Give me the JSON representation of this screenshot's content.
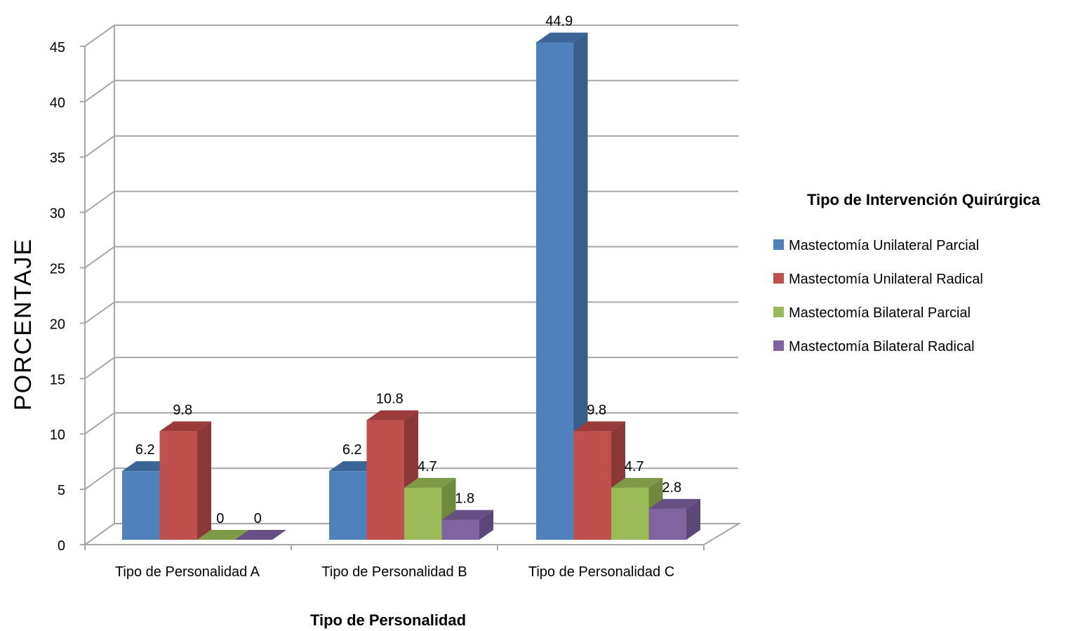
{
  "colors": {
    "grid": "#a6a6a6",
    "wall_edge": "#a6a6a6",
    "text": "#000000"
  },
  "chart_data": {
    "type": "bar",
    "style": "3d-clustered-column",
    "categories": [
      "Tipo de Personalidad A",
      "Tipo de Personalidad B",
      "Tipo de Personalidad C"
    ],
    "series": [
      {
        "name": "Mastectomía Unilateral Parcial",
        "values": [
          6.2,
          6.2,
          44.9
        ],
        "color": "#4f81bd",
        "side": "#385d8a",
        "top": "#3b6497"
      },
      {
        "name": "Mastectomía Unilateral Radical",
        "values": [
          9.8,
          10.8,
          9.8
        ],
        "color": "#c0504d",
        "side": "#8c3836",
        "top": "#9b3c3a"
      },
      {
        "name": "Mastectomía Bilateral Parcial",
        "values": [
          0,
          4.7,
          4.7
        ],
        "color": "#9bbb59",
        "side": "#71893f",
        "top": "#7d9a44"
      },
      {
        "name": "Mastectomía Bilateral Radical",
        "values": [
          0,
          1.8,
          2.8
        ],
        "color": "#8064a2",
        "side": "#5c4876",
        "top": "#664f83"
      }
    ],
    "data_labels": [
      [
        "6.2",
        "9.8",
        "0",
        "0"
      ],
      [
        "6.2",
        "10.8",
        "4.7",
        "1.8"
      ],
      [
        "44.9",
        "9.8",
        "4.7",
        "2.8"
      ]
    ],
    "yticks": [
      "0",
      "5",
      "10",
      "15",
      "20",
      "25",
      "30",
      "35",
      "40",
      "45"
    ],
    "ylim": [
      0,
      45
    ],
    "grid": true,
    "xlabel": "Tipo de Personalidad",
    "ylabel": "PORCENTAJE",
    "legend_title": "Tipo de Intervención Quirúrgica",
    "legend_position": "right"
  }
}
